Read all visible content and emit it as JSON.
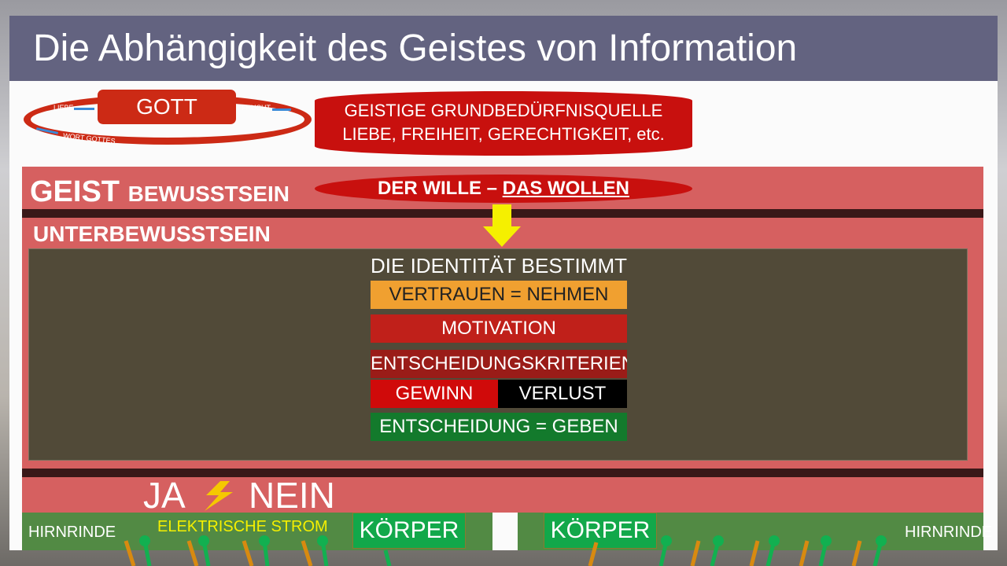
{
  "title": "Die Abhängigkeit des Geistes von Information",
  "cycle": {
    "center": "GOTT",
    "left": "LIEBE",
    "right": "FRUCHT",
    "bottom": "WORT GOTTES"
  },
  "source": {
    "line1": "GEISTIGE GRUNDBEDÜRFNISQUELLE",
    "line2": "LIEBE, FREIHEIT, GERECHTIGKEIT, etc."
  },
  "geist": {
    "big": "GEIST",
    "small": "BEWUSSTSEIN"
  },
  "wille": {
    "a": "DER WILLE – ",
    "b": "DAS WOLLEN"
  },
  "unterbewusstsein": "UNTERBEWUSSTSEIN",
  "identity": {
    "heading": "DIE IDENTITÄT BESTIMMT ALLES",
    "trust": "VERTRAUEN = NEHMEN",
    "motivation": "MOTIVATION",
    "criteria": "ENTSCHEIDUNGSKRITERIEN:",
    "gain": "GEWINN",
    "loss": "VERLUST",
    "decision": "ENTSCHEIDUNG = GEBEN"
  },
  "bottom": {
    "ja": "JA",
    "nein": "NEIN",
    "strom": "ELEKTRISCHE STROM",
    "hirnrinde_left": "HIRNRINDE",
    "hirnrinde_right": "HIRNRINDE",
    "korper1": "KÖRPER",
    "korper2": "KÖRPER"
  },
  "colors": {
    "title_bar": "#636380",
    "red": "#c8100e",
    "pink": "#d66060",
    "olive": "#514a38",
    "orange": "#f0a030",
    "green": "#12a84a"
  }
}
